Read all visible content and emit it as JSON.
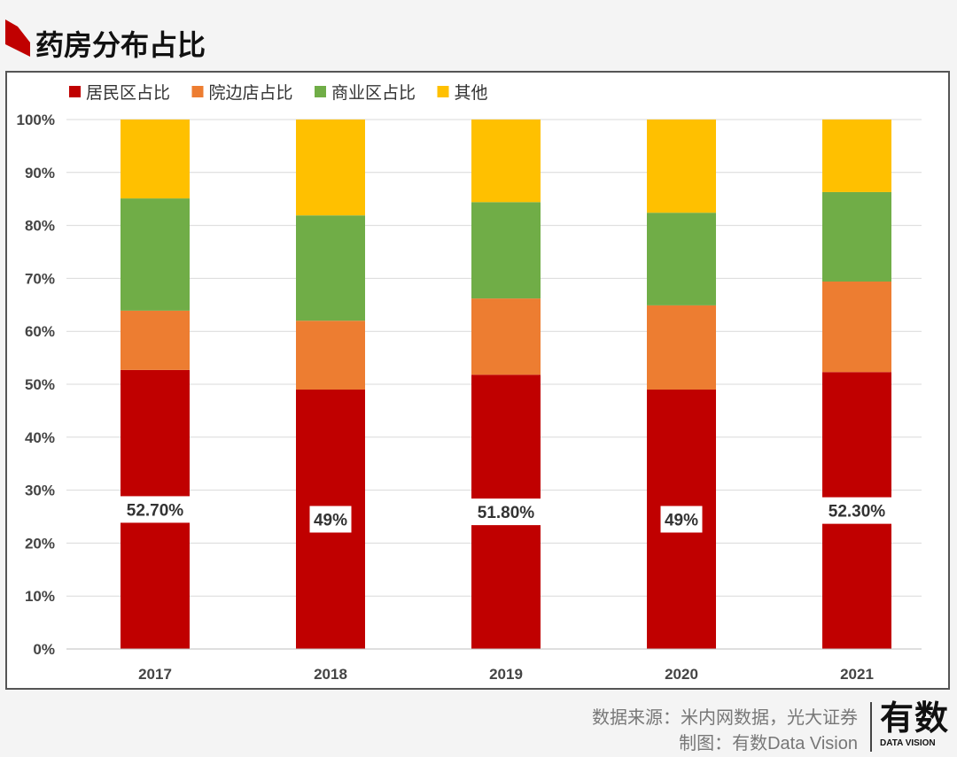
{
  "header": {
    "title": "药房分布占比"
  },
  "chart_data": {
    "type": "bar",
    "stacked": true,
    "categories": [
      "2017",
      "2018",
      "2019",
      "2020",
      "2021"
    ],
    "series": [
      {
        "name": "居民区占比",
        "color": "#c00000",
        "values": [
          52.7,
          49,
          51.8,
          49,
          52.3
        ],
        "labels": [
          "52.70%",
          "49%",
          "51.80%",
          "49%",
          "52.30%"
        ]
      },
      {
        "name": "院边店占比",
        "color": "#ed7d31",
        "values": [
          11.2,
          13,
          14.4,
          15.9,
          17.1
        ]
      },
      {
        "name": "商业区占比",
        "color": "#70ad47",
        "values": [
          21.2,
          19.9,
          18.2,
          17.5,
          16.9
        ]
      },
      {
        "name": "其他",
        "color": "#ffc000",
        "values": [
          14.9,
          18.1,
          15.6,
          17.6,
          13.7
        ]
      }
    ],
    "yticks": [
      "0%",
      "10%",
      "20%",
      "30%",
      "40%",
      "50%",
      "60%",
      "70%",
      "80%",
      "90%",
      "100%"
    ],
    "ylim": [
      0,
      100
    ],
    "grid": true,
    "legend": "top-left"
  },
  "footer": {
    "source": "数据来源：米内网数据，光大证券",
    "made_by": "制图：有数Data Vision"
  },
  "logo": {
    "cn": "有数",
    "en": "DATA VISION"
  }
}
